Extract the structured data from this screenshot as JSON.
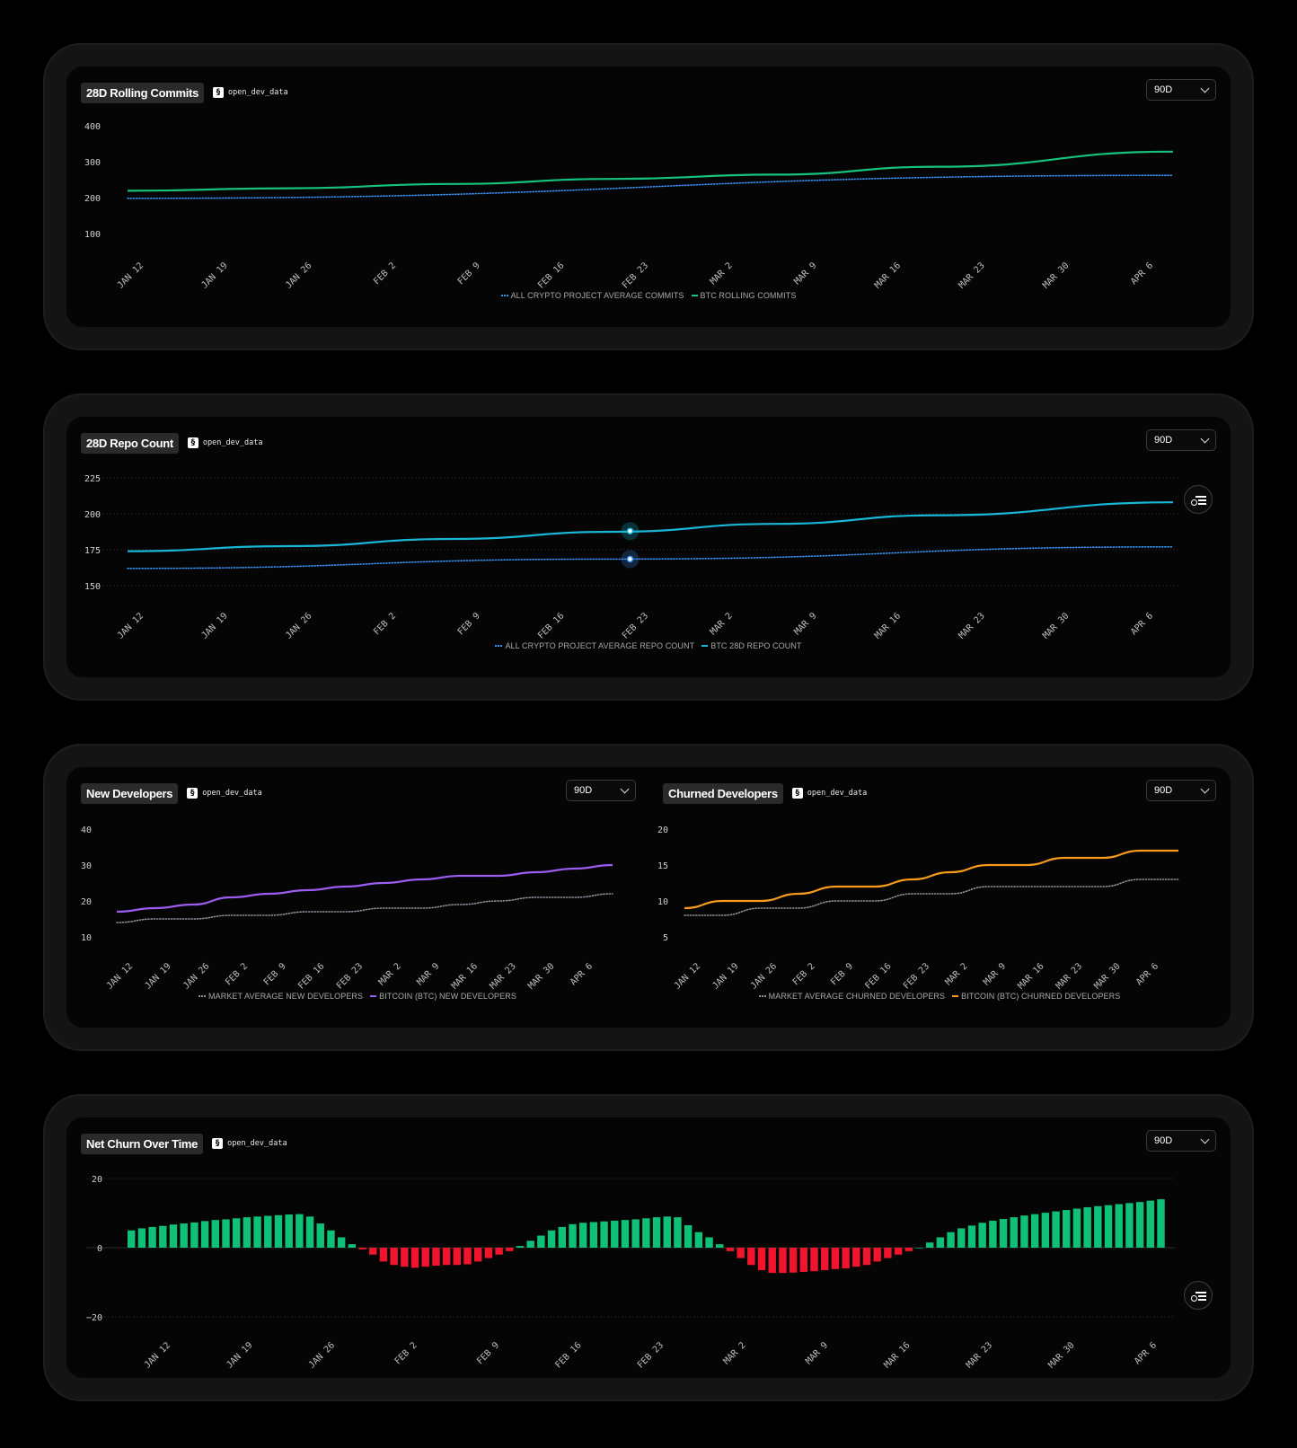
{
  "panels": {
    "commits": {
      "title": "28D Rolling Commits",
      "source": "open_dev_data",
      "range": "90D"
    },
    "repo": {
      "title": "28D Repo Count",
      "source": "open_dev_data",
      "range": "90D"
    },
    "newdev": {
      "title": "New Developers",
      "source": "open_dev_data",
      "range": "90D"
    },
    "churned": {
      "title": "Churned Developers",
      "source": "open_dev_data",
      "range": "90D"
    },
    "netchurn": {
      "title": "Net Churn Over Time",
      "source": "open_dev_data",
      "range": "90D"
    }
  },
  "chart_data": [
    {
      "id": "commits",
      "type": "line",
      "title": "28D Rolling Commits",
      "x_ticks": [
        "JAN 12",
        "JAN 19",
        "JAN 26",
        "FEB 2",
        "FEB 9",
        "FEB 16",
        "FEB 23",
        "MAR 2",
        "MAR 9",
        "MAR 16",
        "MAR 23",
        "MAR 30",
        "APR 6"
      ],
      "y_ticks": [
        100,
        200,
        300,
        400
      ],
      "ylim": [
        100,
        400
      ],
      "grid": false,
      "series": [
        {
          "name": "ALL CRYPTO PROJECT AVERAGE COMMITS",
          "style": "dotted",
          "color": "#3b8ff0",
          "x": [
            0,
            12.9
          ],
          "values": [
            198,
            262
          ]
        },
        {
          "name": "BTC ROLLING COMMITS",
          "style": "solid",
          "color": "#17c27e",
          "x": [
            0,
            2,
            4,
            6,
            8,
            10,
            12.9
          ],
          "values": [
            219,
            226,
            238,
            252,
            264,
            286,
            328
          ]
        }
      ]
    },
    {
      "id": "repo",
      "type": "line",
      "title": "28D Repo Count",
      "x_ticks": [
        "JAN 12",
        "JAN 19",
        "JAN 26",
        "FEB 2",
        "FEB 9",
        "FEB 16",
        "FEB 23",
        "MAR 2",
        "MAR 9",
        "MAR 16",
        "MAR 23",
        "MAR 30",
        "APR 6"
      ],
      "y_ticks": [
        150,
        175,
        200,
        225
      ],
      "ylim": [
        150,
        225
      ],
      "grid": true,
      "series": [
        {
          "name": "ALL CRYPTO PROJECT AVERAGE REPO COUNT",
          "style": "dotted",
          "color": "#3b8ff0",
          "x": [
            0,
            6,
            12.9
          ],
          "values": [
            162,
            168.5,
            177
          ]
        },
        {
          "name": "BTC 28D REPO COUNT",
          "style": "solid",
          "color": "#19b6d6",
          "x": [
            0,
            2,
            4,
            6,
            8,
            10,
            12.9
          ],
          "values": [
            174,
            177.5,
            182.5,
            187.5,
            193,
            199,
            208
          ]
        }
      ]
    },
    {
      "id": "newdev",
      "type": "line",
      "title": "New Developers",
      "x_ticks": [
        "JAN 12",
        "JAN 19",
        "JAN 26",
        "FEB 2",
        "FEB 9",
        "FEB 16",
        "FEB 23",
        "MAR 2",
        "MAR 9",
        "MAR 16",
        "MAR 23",
        "MAR 30",
        "APR 6"
      ],
      "y_ticks": [
        10,
        20,
        30,
        40
      ],
      "ylim": [
        10,
        40
      ],
      "grid": false,
      "series": [
        {
          "name": "MARKET AVERAGE NEW DEVELOPERS",
          "style": "dotted",
          "color": "#8d8d9a",
          "x": [
            0,
            1,
            2,
            3,
            4,
            5,
            6,
            7,
            8,
            9,
            10,
            11,
            12,
            13
          ],
          "values": [
            14,
            15,
            15,
            16,
            16,
            17,
            17,
            18,
            18,
            19,
            20,
            21,
            21,
            22
          ]
        },
        {
          "name": "BITCOIN (BTC) NEW DEVELOPERS",
          "style": "solid",
          "color": "#9b5cf0",
          "x": [
            0,
            1,
            2,
            3,
            4,
            5,
            6,
            7,
            8,
            9,
            10,
            11,
            12,
            13
          ],
          "values": [
            17,
            18,
            19,
            21,
            22,
            23,
            24,
            25,
            26,
            27,
            27,
            28,
            29,
            30
          ]
        }
      ]
    },
    {
      "id": "churned",
      "type": "line",
      "title": "Churned Developers",
      "x_ticks": [
        "JAN 12",
        "JAN 19",
        "JAN 26",
        "FEB 2",
        "FEB 9",
        "FEB 16",
        "FEB 23",
        "MAR 2",
        "MAR 9",
        "MAR 16",
        "MAR 23",
        "MAR 30",
        "APR 6"
      ],
      "y_ticks": [
        5,
        10,
        15,
        20
      ],
      "ylim": [
        5,
        20
      ],
      "grid": false,
      "series": [
        {
          "name": "MARKET AVERAGE CHURNED DEVELOPERS",
          "style": "dotted",
          "color": "#8d8d9a",
          "x": [
            0,
            1,
            2,
            3,
            4,
            5,
            6,
            7,
            8,
            9,
            10,
            11,
            12,
            13
          ],
          "values": [
            8,
            8,
            9,
            9,
            10,
            10,
            11,
            11,
            12,
            12,
            12,
            12,
            13,
            13
          ]
        },
        {
          "name": "BITCOIN (BTC) CHURNED DEVELOPERS",
          "style": "solid",
          "color": "#f59a1b",
          "x": [
            0,
            1,
            2,
            3,
            4,
            5,
            6,
            7,
            8,
            9,
            10,
            11,
            12,
            13
          ],
          "values": [
            9,
            10,
            10,
            11,
            12,
            12,
            13,
            14,
            15,
            15,
            16,
            16,
            17,
            17
          ]
        }
      ]
    },
    {
      "id": "netchurn",
      "type": "bar",
      "title": "Net Churn Over Time",
      "x_ticks": [
        "JAN 12",
        "JAN 19",
        "JAN 26",
        "FEB 2",
        "FEB 9",
        "FEB 16",
        "FEB 23",
        "MAR 2",
        "MAR 9",
        "MAR 16",
        "MAR 23",
        "MAR 30",
        "APR 6"
      ],
      "y_ticks": [
        -20,
        0,
        20
      ],
      "ylim": [
        -20,
        20
      ],
      "grid": true,
      "positive_color": "#0fc177",
      "negative_color": "#f0152d",
      "values": [
        5,
        5.6,
        6,
        6.3,
        6.7,
        7,
        7.3,
        7.7,
        8,
        8.2,
        8.5,
        8.8,
        9,
        9.2,
        9.4,
        9.6,
        9.7,
        9,
        7,
        5,
        3,
        1,
        -0.5,
        -2,
        -4,
        -5,
        -5.5,
        -5.8,
        -5.5,
        -5.2,
        -5,
        -5,
        -4.8,
        -4,
        -3,
        -2,
        -1,
        0.5,
        2,
        3.5,
        5,
        6,
        6.8,
        7.2,
        7.4,
        7.6,
        7.8,
        8,
        8.2,
        8.5,
        8.8,
        9,
        8.8,
        6.5,
        4.5,
        3,
        1,
        -1,
        -3,
        -5,
        -6.5,
        -7.3,
        -7.3,
        -7.2,
        -7,
        -6.8,
        -6.5,
        -6.2,
        -6,
        -5.5,
        -5,
        -4,
        -3,
        -2,
        -1,
        0,
        1.5,
        3,
        4.5,
        5.6,
        6.4,
        7.2,
        7.8,
        8.3,
        8.8,
        9.3,
        9.7,
        10.1,
        10.5,
        10.9,
        11.3,
        11.7,
        12,
        12.3,
        12.6,
        12.9,
        13.2,
        13.6,
        14
      ]
    }
  ]
}
